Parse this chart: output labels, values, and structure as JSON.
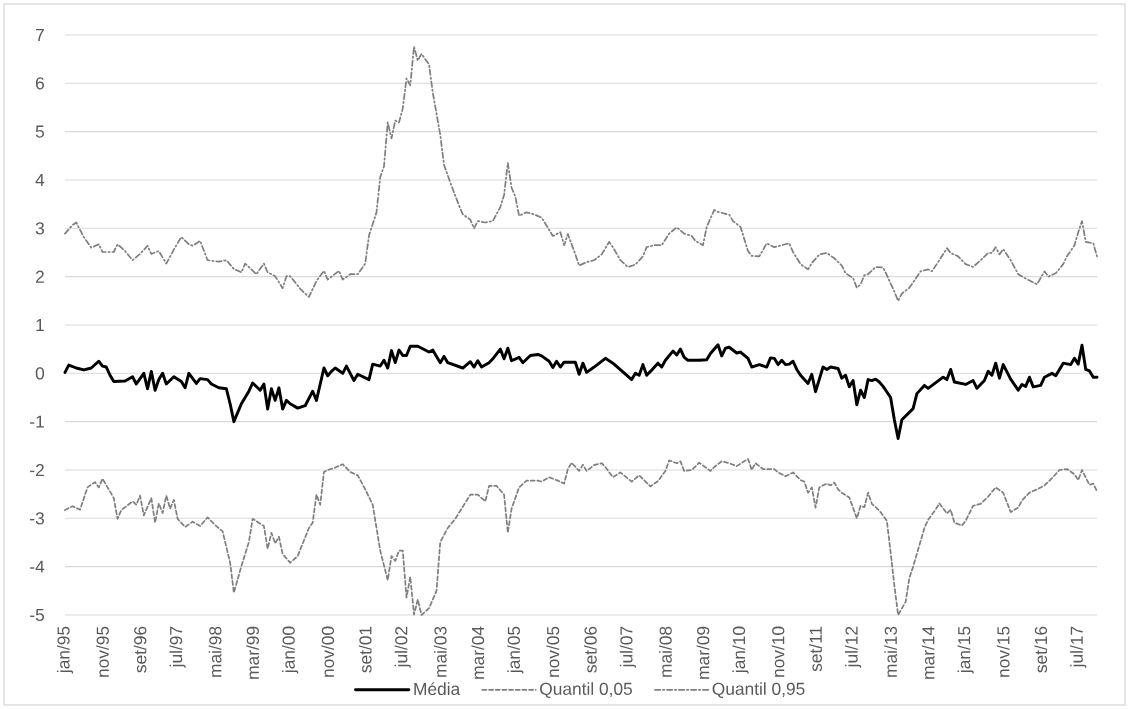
{
  "chart_data": {
    "type": "line",
    "xlim": [
      "1995-01",
      "2017-12"
    ],
    "xticks": [
      {
        "value": "1995-01",
        "label": "jan/95"
      },
      {
        "value": "1995-11",
        "label": "nov/95"
      },
      {
        "value": "1996-09",
        "label": "set/96"
      },
      {
        "value": "1997-07",
        "label": "jul/97"
      },
      {
        "value": "1998-05",
        "label": "mai/98"
      },
      {
        "value": "1999-03",
        "label": "mar/99"
      },
      {
        "value": "2000-01",
        "label": "jan/00"
      },
      {
        "value": "2000-11",
        "label": "nov/00"
      },
      {
        "value": "2001-09",
        "label": "set/01"
      },
      {
        "value": "2002-07",
        "label": "jul/02"
      },
      {
        "value": "2003-05",
        "label": "mai/03"
      },
      {
        "value": "2004-03",
        "label": "mar/04"
      },
      {
        "value": "2005-01",
        "label": "jan/05"
      },
      {
        "value": "2005-11",
        "label": "nov/05"
      },
      {
        "value": "2006-09",
        "label": "set/06"
      },
      {
        "value": "2007-07",
        "label": "jul/07"
      },
      {
        "value": "2008-05",
        "label": "mai/08"
      },
      {
        "value": "2009-03",
        "label": "mar/09"
      },
      {
        "value": "2010-01",
        "label": "jan/10"
      },
      {
        "value": "2010-11",
        "label": "nov/10"
      },
      {
        "value": "2011-09",
        "label": "set/11"
      },
      {
        "value": "2012-07",
        "label": "jul/12"
      },
      {
        "value": "2013-05",
        "label": "mai/13"
      },
      {
        "value": "2014-03",
        "label": "mar/14"
      },
      {
        "value": "2015-01",
        "label": "jan/15"
      },
      {
        "value": "2015-11",
        "label": "nov/15"
      },
      {
        "value": "2016-09",
        "label": "set/16"
      },
      {
        "value": "2017-07",
        "label": "jul/17"
      }
    ],
    "ylim": [
      -5,
      7
    ],
    "yticks": [
      -5,
      -4,
      -3,
      -2,
      -1,
      0,
      1,
      2,
      3,
      4,
      5,
      6,
      7
    ],
    "grid": "y",
    "legend": "bottom",
    "marker": "none",
    "series": [
      {
        "name": "Média",
        "color": "#000000",
        "line_style": "solid",
        "x": [
          "1995-01",
          "1995-02",
          "1995-04",
          "1995-06",
          "1995-08",
          "1995-10",
          "1995-11",
          "1995-12",
          "1996-01",
          "1996-02",
          "1996-05",
          "1996-07",
          "1996-08",
          "1996-10",
          "1996-11",
          "1996-12",
          "1997-01",
          "1997-02",
          "1997-03",
          "1997-04",
          "1997-06",
          "1997-08",
          "1997-09",
          "1997-10",
          "1997-12",
          "1998-01",
          "1998-03",
          "1998-04",
          "1998-06",
          "1998-08",
          "1998-09",
          "1998-10",
          "1998-12",
          "1999-02",
          "1999-03",
          "1999-05",
          "1999-06",
          "1999-07",
          "1999-08",
          "1999-09",
          "1999-10",
          "1999-11",
          "1999-12",
          "2000-01",
          "2000-03",
          "2000-05",
          "2000-06",
          "2000-07",
          "2000-08",
          "2000-10",
          "2000-11",
          "2000-12",
          "2001-01",
          "2001-03",
          "2001-04",
          "2001-06",
          "2001-07",
          "2001-10",
          "2001-11",
          "2002-01",
          "2002-02",
          "2002-03",
          "2002-04",
          "2002-05",
          "2002-06",
          "2002-07",
          "2002-08",
          "2002-09",
          "2002-11",
          "2003-02",
          "2003-03",
          "2003-04",
          "2003-05",
          "2003-06",
          "2003-07",
          "2003-11",
          "2004-01",
          "2004-02",
          "2004-03",
          "2004-04",
          "2004-06",
          "2004-07",
          "2004-09",
          "2004-10",
          "2004-11",
          "2004-12",
          "2005-02",
          "2005-03",
          "2005-05",
          "2005-07",
          "2005-08",
          "2005-10",
          "2005-11",
          "2005-12",
          "2006-01",
          "2006-02",
          "2006-05",
          "2006-06",
          "2006-07",
          "2006-08",
          "2006-10",
          "2007-01",
          "2007-03",
          "2007-08",
          "2007-09",
          "2007-10",
          "2007-11",
          "2007-12",
          "2008-01",
          "2008-03",
          "2008-04",
          "2008-05",
          "2008-07",
          "2008-08",
          "2008-09",
          "2008-10",
          "2008-11",
          "2009-02",
          "2009-04",
          "2009-05",
          "2009-07",
          "2009-08",
          "2009-09",
          "2009-10",
          "2009-12",
          "2010-01",
          "2010-03",
          "2010-04",
          "2010-06",
          "2010-08",
          "2010-09",
          "2010-10",
          "2010-11",
          "2010-12",
          "2011-01",
          "2011-02",
          "2011-03",
          "2011-04",
          "2011-05",
          "2011-07",
          "2011-08",
          "2011-09",
          "2011-11",
          "2011-12",
          "2012-01",
          "2012-03",
          "2012-04",
          "2012-05",
          "2012-06",
          "2012-07",
          "2012-08",
          "2012-09",
          "2012-10",
          "2012-11",
          "2012-12",
          "2013-01",
          "2013-02",
          "2013-03",
          "2013-05",
          "2013-06",
          "2013-07",
          "2013-08",
          "2013-11",
          "2013-12",
          "2014-02",
          "2014-03",
          "2014-07",
          "2014-08",
          "2014-09",
          "2014-10",
          "2015-01",
          "2015-03",
          "2015-04",
          "2015-06",
          "2015-07",
          "2015-08",
          "2015-09",
          "2015-10",
          "2015-11",
          "2016-01",
          "2016-03",
          "2016-04",
          "2016-05",
          "2016-06",
          "2016-07",
          "2016-09",
          "2016-10",
          "2016-12",
          "2017-01",
          "2017-02",
          "2017-03",
          "2017-05",
          "2017-06",
          "2017-07",
          "2017-08",
          "2017-09",
          "2017-10",
          "2017-11",
          "2017-12"
        ],
        "values": [
          0.02,
          0.17,
          0.11,
          0.07,
          0.11,
          0.25,
          0.15,
          0.13,
          -0.04,
          -0.17,
          -0.16,
          -0.07,
          -0.22,
          0.0,
          -0.32,
          0.04,
          -0.35,
          -0.13,
          0.0,
          -0.22,
          -0.07,
          -0.17,
          -0.3,
          0.0,
          -0.21,
          -0.11,
          -0.13,
          -0.22,
          -0.3,
          -0.32,
          -0.63,
          -1.0,
          -0.63,
          -0.37,
          -0.2,
          -0.35,
          -0.22,
          -0.74,
          -0.32,
          -0.56,
          -0.3,
          -0.74,
          -0.56,
          -0.63,
          -0.72,
          -0.67,
          -0.52,
          -0.37,
          -0.56,
          0.11,
          -0.05,
          0.04,
          0.11,
          0.0,
          0.15,
          -0.15,
          -0.02,
          -0.13,
          0.19,
          0.15,
          0.27,
          0.11,
          0.47,
          0.22,
          0.48,
          0.37,
          0.37,
          0.56,
          0.56,
          0.44,
          0.48,
          0.35,
          0.22,
          0.35,
          0.22,
          0.11,
          0.24,
          0.13,
          0.26,
          0.13,
          0.22,
          0.3,
          0.5,
          0.3,
          0.52,
          0.26,
          0.33,
          0.22,
          0.37,
          0.39,
          0.36,
          0.25,
          0.12,
          0.25,
          0.13,
          0.23,
          0.23,
          -0.02,
          0.21,
          0.02,
          0.13,
          0.31,
          0.21,
          -0.13,
          0.0,
          -0.04,
          0.18,
          -0.04,
          0.04,
          0.21,
          0.13,
          0.27,
          0.46,
          0.38,
          0.5,
          0.33,
          0.27,
          0.27,
          0.28,
          0.41,
          0.59,
          0.36,
          0.52,
          0.54,
          0.42,
          0.44,
          0.31,
          0.13,
          0.18,
          0.13,
          0.32,
          0.31,
          0.18,
          0.27,
          0.18,
          0.19,
          0.25,
          0.08,
          -0.04,
          -0.21,
          -0.02,
          -0.38,
          0.13,
          0.08,
          0.13,
          0.1,
          -0.1,
          -0.04,
          -0.28,
          -0.15,
          -0.65,
          -0.35,
          -0.5,
          -0.13,
          -0.15,
          -0.12,
          -0.18,
          -0.27,
          -0.5,
          -0.96,
          -1.35,
          -0.96,
          -0.73,
          -0.42,
          -0.25,
          -0.31,
          -0.08,
          -0.13,
          0.08,
          -0.18,
          -0.23,
          -0.15,
          -0.31,
          -0.15,
          0.04,
          -0.04,
          0.21,
          -0.1,
          0.18,
          -0.12,
          -0.35,
          -0.23,
          -0.27,
          -0.08,
          -0.28,
          -0.25,
          -0.08,
          0.0,
          -0.05,
          0.08,
          0.21,
          0.18,
          0.31,
          0.19,
          0.58,
          0.08,
          0.05,
          -0.08,
          -0.08
        ]
      },
      {
        "name": "Quantil 0,05",
        "color": "#7f7f7f",
        "line_style": "dashed",
        "x": [
          "1995-01",
          "1995-03",
          "1995-05",
          "1995-07",
          "1995-09",
          "1995-10",
          "1995-11",
          "1996-02",
          "1996-03",
          "1996-04",
          "1996-07",
          "1996-08",
          "1996-09",
          "1996-10",
          "1996-12",
          "1997-01",
          "1997-02",
          "1997-03",
          "1997-04",
          "1997-05",
          "1997-06",
          "1997-07",
          "1997-09",
          "1997-11",
          "1998-01",
          "1998-03",
          "1998-05",
          "1998-07",
          "1998-09",
          "1998-10",
          "1998-12",
          "1999-02",
          "1999-03",
          "1999-06",
          "1999-07",
          "1999-08",
          "1999-09",
          "1999-10",
          "1999-11",
          "2000-01",
          "2000-03",
          "2000-06",
          "2000-07",
          "2000-08",
          "2000-09",
          "2000-10",
          "2000-11",
          "2001-01",
          "2001-03",
          "2001-05",
          "2001-07",
          "2001-09",
          "2001-11",
          "2002-01",
          "2002-03",
          "2002-04",
          "2002-05",
          "2002-06",
          "2002-07",
          "2002-08",
          "2002-09",
          "2002-10",
          "2002-11",
          "2002-12",
          "2003-02",
          "2003-04",
          "2003-05",
          "2003-07",
          "2003-09",
          "2003-11",
          "2004-01",
          "2004-03",
          "2004-05",
          "2004-06",
          "2004-08",
          "2004-10",
          "2004-11",
          "2004-12",
          "2005-02",
          "2005-04",
          "2005-07",
          "2005-08",
          "2005-10",
          "2005-12",
          "2006-02",
          "2006-03",
          "2006-04",
          "2006-06",
          "2006-07",
          "2006-08",
          "2006-10",
          "2006-12",
          "2007-01",
          "2007-03",
          "2007-05",
          "2007-08",
          "2007-10",
          "2008-01",
          "2008-03",
          "2008-05",
          "2008-06",
          "2008-08",
          "2008-09",
          "2008-10",
          "2008-12",
          "2009-02",
          "2009-05",
          "2009-06",
          "2009-08",
          "2009-10",
          "2009-12",
          "2010-03",
          "2010-04",
          "2010-05",
          "2010-07",
          "2010-10",
          "2010-11",
          "2011-01",
          "2011-03",
          "2011-05",
          "2011-06",
          "2011-07",
          "2011-08",
          "2011-09",
          "2011-10",
          "2011-12",
          "2012-01",
          "2012-02",
          "2012-03",
          "2012-04",
          "2012-06",
          "2012-08",
          "2012-09",
          "2012-10",
          "2012-11",
          "2012-12",
          "2013-02",
          "2013-04",
          "2013-05",
          "2013-06",
          "2013-07",
          "2013-09",
          "2013-10",
          "2013-11",
          "2014-01",
          "2014-02",
          "2014-03",
          "2014-05",
          "2014-06",
          "2014-08",
          "2014-09",
          "2014-10",
          "2014-12",
          "2015-01",
          "2015-03",
          "2015-05",
          "2015-07",
          "2015-09",
          "2015-11",
          "2016-01",
          "2016-03",
          "2016-04",
          "2016-06",
          "2016-08",
          "2016-10",
          "2016-12",
          "2017-02",
          "2017-04",
          "2017-06",
          "2017-07",
          "2017-08",
          "2017-10",
          "2017-11",
          "2017-12"
        ],
        "values": [
          -2.83,
          -2.75,
          -2.82,
          -2.36,
          -2.25,
          -2.36,
          -2.18,
          -2.58,
          -3.01,
          -2.83,
          -2.65,
          -2.72,
          -2.53,
          -2.94,
          -2.58,
          -3.09,
          -2.69,
          -2.89,
          -2.53,
          -2.8,
          -2.62,
          -3.01,
          -3.18,
          -3.07,
          -3.16,
          -2.98,
          -3.14,
          -3.27,
          -3.92,
          -4.54,
          -3.99,
          -3.49,
          -3.01,
          -3.16,
          -3.63,
          -3.3,
          -3.52,
          -3.38,
          -3.74,
          -3.92,
          -3.78,
          -3.2,
          -3.09,
          -2.51,
          -2.72,
          -2.04,
          -2.0,
          -1.95,
          -1.88,
          -2.04,
          -2.11,
          -2.4,
          -2.72,
          -3.67,
          -4.28,
          -3.78,
          -3.88,
          -3.67,
          -3.67,
          -4.64,
          -4.21,
          -4.99,
          -4.68,
          -5.0,
          -4.86,
          -4.5,
          -3.49,
          -3.2,
          -3.01,
          -2.76,
          -2.51,
          -2.51,
          -2.65,
          -2.33,
          -2.33,
          -2.51,
          -3.3,
          -2.8,
          -2.36,
          -2.22,
          -2.22,
          -2.24,
          -2.15,
          -2.21,
          -2.28,
          -1.98,
          -1.85,
          -2.02,
          -1.89,
          -2.02,
          -1.9,
          -1.86,
          -1.94,
          -2.15,
          -2.05,
          -2.24,
          -2.11,
          -2.34,
          -2.23,
          -2.02,
          -1.8,
          -1.86,
          -1.82,
          -2.02,
          -2.0,
          -1.85,
          -2.02,
          -1.94,
          -1.82,
          -1.86,
          -1.92,
          -1.77,
          -2.0,
          -1.86,
          -1.98,
          -1.98,
          -2.05,
          -2.13,
          -2.05,
          -2.21,
          -2.24,
          -2.47,
          -2.36,
          -2.78,
          -2.36,
          -2.28,
          -2.32,
          -2.26,
          -2.4,
          -2.47,
          -2.57,
          -3.0,
          -2.74,
          -2.77,
          -2.47,
          -2.7,
          -2.84,
          -3.05,
          -3.7,
          -4.39,
          -5.0,
          -4.73,
          -4.23,
          -4.0,
          -3.47,
          -3.2,
          -3.03,
          -2.82,
          -2.69,
          -2.9,
          -2.82,
          -3.09,
          -3.15,
          -3.05,
          -2.74,
          -2.7,
          -2.55,
          -2.36,
          -2.47,
          -2.87,
          -2.78,
          -2.63,
          -2.47,
          -2.4,
          -2.32,
          -2.17,
          -2.0,
          -1.98,
          -2.09,
          -2.21,
          -2.0,
          -2.31,
          -2.28,
          -2.44
        ]
      },
      {
        "name": "Quantil 0,95",
        "color": "#7f7f7f",
        "line_style": "dashdot",
        "x": [
          "1995-01",
          "1995-03",
          "1995-04",
          "1995-06",
          "1995-08",
          "1995-10",
          "1995-11",
          "1996-02",
          "1996-03",
          "1996-05",
          "1996-07",
          "1996-09",
          "1996-11",
          "1996-12",
          "1997-02",
          "1997-04",
          "1997-06",
          "1997-08",
          "1997-10",
          "1997-11",
          "1998-01",
          "1998-03",
          "1998-06",
          "1998-08",
          "1998-10",
          "1998-12",
          "1999-01",
          "1999-04",
          "1999-06",
          "1999-07",
          "1999-09",
          "1999-11",
          "1999-12",
          "2000-01",
          "2000-04",
          "2000-06",
          "2000-08",
          "2000-10",
          "2000-11",
          "2001-02",
          "2001-03",
          "2001-05",
          "2001-07",
          "2001-09",
          "2001-10",
          "2001-12",
          "2002-01",
          "2002-02",
          "2002-03",
          "2002-04",
          "2002-05",
          "2002-06",
          "2002-07",
          "2002-08",
          "2002-09",
          "2002-10",
          "2002-11",
          "2002-12",
          "2003-02",
          "2003-03",
          "2003-05",
          "2003-06",
          "2003-08",
          "2003-10",
          "2003-11",
          "2004-01",
          "2004-02",
          "2004-03",
          "2004-05",
          "2004-07",
          "2004-09",
          "2004-10",
          "2004-11",
          "2004-12",
          "2005-01",
          "2005-02",
          "2005-04",
          "2005-06",
          "2005-08",
          "2005-10",
          "2005-11",
          "2006-01",
          "2006-02",
          "2006-03",
          "2006-05",
          "2006-06",
          "2006-08",
          "2006-10",
          "2006-12",
          "2007-02",
          "2007-03",
          "2007-05",
          "2007-07",
          "2007-09",
          "2007-11",
          "2007-12",
          "2008-02",
          "2008-04",
          "2008-06",
          "2008-08",
          "2008-10",
          "2008-12",
          "2009-01",
          "2009-03",
          "2009-04",
          "2009-06",
          "2009-07",
          "2009-10",
          "2009-11",
          "2010-01",
          "2010-03",
          "2010-04",
          "2010-06",
          "2010-08",
          "2010-10",
          "2010-12",
          "2011-02",
          "2011-03",
          "2011-05",
          "2011-07",
          "2011-08",
          "2011-10",
          "2011-12",
          "2012-02",
          "2012-04",
          "2012-05",
          "2012-07",
          "2012-08",
          "2012-09",
          "2012-10",
          "2012-11",
          "2013-01",
          "2013-03",
          "2013-04",
          "2013-06",
          "2013-07",
          "2013-08",
          "2013-10",
          "2013-11",
          "2014-01",
          "2014-03",
          "2014-04",
          "2014-06",
          "2014-08",
          "2014-09",
          "2014-11",
          "2014-12",
          "2015-01",
          "2015-03",
          "2015-05",
          "2015-07",
          "2015-08",
          "2015-09",
          "2015-10",
          "2015-11",
          "2016-01",
          "2016-03",
          "2016-05",
          "2016-08",
          "2016-10",
          "2016-11",
          "2017-01",
          "2017-03",
          "2017-04",
          "2017-06",
          "2017-07",
          "2017-08",
          "2017-09",
          "2017-11",
          "2017-12"
        ],
        "values": [
          2.89,
          3.07,
          3.12,
          2.82,
          2.6,
          2.67,
          2.51,
          2.51,
          2.67,
          2.53,
          2.34,
          2.47,
          2.64,
          2.47,
          2.53,
          2.27,
          2.56,
          2.82,
          2.67,
          2.64,
          2.74,
          2.34,
          2.31,
          2.34,
          2.16,
          2.09,
          2.27,
          2.05,
          2.27,
          2.09,
          2.01,
          1.76,
          2.01,
          2.01,
          1.72,
          1.58,
          1.91,
          2.12,
          1.94,
          2.12,
          1.94,
          2.05,
          2.05,
          2.27,
          2.85,
          3.33,
          4.06,
          4.28,
          5.19,
          4.86,
          5.23,
          5.19,
          5.48,
          6.1,
          5.96,
          6.76,
          6.47,
          6.61,
          6.39,
          5.81,
          4.93,
          4.31,
          3.88,
          3.47,
          3.29,
          3.18,
          3.0,
          3.15,
          3.12,
          3.15,
          3.44,
          3.69,
          4.35,
          3.84,
          3.66,
          3.26,
          3.33,
          3.29,
          3.22,
          2.97,
          2.84,
          2.92,
          2.65,
          2.88,
          2.46,
          2.23,
          2.3,
          2.34,
          2.46,
          2.72,
          2.61,
          2.34,
          2.2,
          2.25,
          2.42,
          2.61,
          2.65,
          2.65,
          2.89,
          3.02,
          2.89,
          2.84,
          2.74,
          2.65,
          3.03,
          3.38,
          3.34,
          3.28,
          3.15,
          3.03,
          2.53,
          2.43,
          2.42,
          2.69,
          2.61,
          2.65,
          2.69,
          2.51,
          2.26,
          2.15,
          2.28,
          2.46,
          2.49,
          2.38,
          2.23,
          2.07,
          1.97,
          1.77,
          1.84,
          2.03,
          2.05,
          2.2,
          2.19,
          2.03,
          1.69,
          1.5,
          1.65,
          1.77,
          1.88,
          2.11,
          2.15,
          2.11,
          2.34,
          2.59,
          2.49,
          2.42,
          2.34,
          2.26,
          2.2,
          2.34,
          2.49,
          2.49,
          2.61,
          2.46,
          2.57,
          2.34,
          2.05,
          1.96,
          1.84,
          2.11,
          2.0,
          2.07,
          2.26,
          2.42,
          2.65,
          2.92,
          3.15,
          2.72,
          2.69,
          2.42
        ]
      }
    ]
  }
}
